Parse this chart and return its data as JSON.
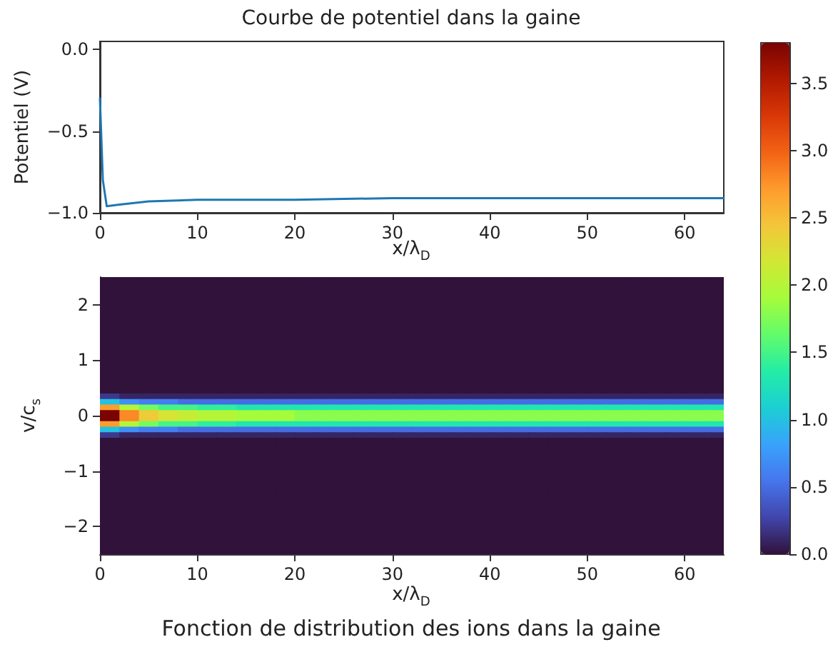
{
  "chart_data": [
    {
      "type": "line",
      "title": "Courbe de potentiel dans la gaine",
      "xlabel": "x/λ$_{D}$",
      "ylabel": "Potentiel (V)",
      "x": [
        0,
        0.3,
        0.7,
        2,
        5,
        10,
        20,
        30,
        64
      ],
      "series": [
        {
          "color": "#1f77b4",
          "values": [
            -0.3,
            -0.8,
            -0.96,
            -0.95,
            -0.93,
            -0.92,
            -0.92,
            -0.91,
            -0.91
          ]
        }
      ],
      "xlim": [
        0,
        64
      ],
      "xticks": [
        0,
        10,
        20,
        30,
        40,
        50,
        60
      ],
      "ylim": [
        -1.0,
        0.05
      ],
      "yticks": [
        {
          "value": 0,
          "label": "0.0"
        },
        {
          "value": -0.5,
          "label": "−0.5"
        },
        {
          "value": -1,
          "label": "−1.0"
        }
      ],
      "grid": false,
      "marker": "none"
    },
    {
      "type": "heatmap",
      "title": "Fonction de distribution des ions dans la gaine",
      "xlabel": "x/λ$_{D}$",
      "ylabel": "v/c$_{s}$",
      "x": [
        1,
        3,
        5,
        7,
        9,
        11,
        13,
        15,
        17,
        19,
        21,
        23,
        25,
        27,
        29,
        31,
        33,
        35,
        37,
        39,
        41,
        43,
        45,
        47,
        49,
        51,
        53,
        55,
        57,
        59,
        61,
        63
      ],
      "y": [
        2.45,
        2.35,
        2.25,
        2.15,
        2.05,
        1.95,
        1.85,
        1.75,
        1.65,
        1.55,
        1.45,
        1.35,
        1.25,
        1.15,
        1.05,
        0.95,
        0.85,
        0.75,
        0.65,
        0.55,
        0.45,
        0.35,
        0.25,
        0.15,
        0.05,
        -0.05,
        -0.15,
        -0.25,
        -0.35,
        -0.45,
        -0.55,
        -0.65,
        -0.75,
        -0.85,
        -0.95,
        -1.05,
        -1.15,
        -1.25,
        -1.35,
        -1.45,
        -1.55,
        -1.65,
        -1.75,
        -1.85,
        -1.95,
        -2.05,
        -2.15,
        -2.25,
        -2.35,
        -2.45
      ],
      "cells": [
        [
          0,
          0,
          0,
          0,
          0,
          0,
          0,
          0,
          0,
          0,
          0,
          0,
          0,
          0,
          0,
          0,
          0,
          0,
          0,
          0,
          0,
          0,
          0,
          0,
          0,
          0,
          0,
          0,
          0,
          0,
          0,
          0
        ],
        [
          0,
          0,
          0,
          0,
          0,
          0,
          0,
          0,
          0,
          0,
          0,
          0,
          0,
          0,
          0,
          0,
          0,
          0,
          0,
          0,
          0,
          0,
          0,
          0,
          0,
          0,
          0,
          0,
          0,
          0,
          0,
          0
        ],
        [
          0,
          0,
          0,
          0,
          0,
          0,
          0,
          0,
          0,
          0,
          0,
          0,
          0,
          0,
          0,
          0,
          0,
          0,
          0,
          0,
          0,
          0,
          0,
          0,
          0,
          0,
          0,
          0,
          0,
          0,
          0,
          0
        ],
        [
          0,
          0,
          0,
          0,
          0,
          0,
          0,
          0,
          0,
          0,
          0,
          0,
          0,
          0,
          0,
          0,
          0,
          0,
          0,
          0,
          0,
          0,
          0,
          0,
          0,
          0,
          0,
          0,
          0,
          0,
          0,
          0
        ],
        [
          0,
          0,
          0,
          0,
          0,
          0,
          0,
          0,
          0,
          0,
          0,
          0,
          0,
          0,
          0,
          0,
          0,
          0,
          0,
          0,
          0,
          0,
          0,
          0,
          0,
          0,
          0,
          0,
          0,
          0,
          0,
          0
        ],
        [
          0,
          0,
          0,
          0,
          0,
          0,
          0,
          0,
          0,
          0,
          0,
          0,
          0,
          0,
          0,
          0,
          0,
          0,
          0,
          0,
          0,
          0,
          0,
          0,
          0,
          0,
          0,
          0,
          0,
          0,
          0,
          0
        ],
        [
          0,
          0,
          0,
          0,
          0,
          0,
          0,
          0,
          0,
          0,
          0,
          0,
          0,
          0,
          0,
          0,
          0,
          0,
          0,
          0,
          0,
          0,
          0,
          0,
          0,
          0,
          0,
          0,
          0,
          0,
          0,
          0
        ],
        [
          0,
          0,
          0,
          0,
          0,
          0,
          0,
          0,
          0,
          0,
          0,
          0,
          0,
          0,
          0,
          0,
          0,
          0,
          0,
          0,
          0,
          0,
          0,
          0,
          0,
          0,
          0,
          0,
          0,
          0,
          0,
          0
        ],
        [
          0,
          0,
          0,
          0,
          0,
          0,
          0,
          0,
          0,
          0,
          0,
          0,
          0,
          0,
          0,
          0,
          0,
          0,
          0,
          0,
          0,
          0,
          0,
          0,
          0,
          0,
          0,
          0,
          0,
          0,
          0,
          0
        ],
        [
          0,
          0,
          0,
          0,
          0,
          0,
          0,
          0,
          0,
          0,
          0,
          0,
          0,
          0,
          0,
          0,
          0,
          0,
          0,
          0,
          0,
          0,
          0,
          0,
          0,
          0,
          0,
          0,
          0,
          0,
          0,
          0
        ],
        [
          0,
          0,
          0,
          0,
          0,
          0,
          0,
          0,
          0,
          0,
          0,
          0,
          0,
          0,
          0,
          0,
          0,
          0,
          0,
          0,
          0,
          0,
          0,
          0,
          0,
          0,
          0,
          0,
          0,
          0,
          0,
          0
        ],
        [
          0,
          0,
          0,
          0,
          0,
          0,
          0,
          0,
          0,
          0,
          0,
          0,
          0,
          0,
          0,
          0,
          0,
          0,
          0,
          0,
          0,
          0,
          0,
          0,
          0,
          0,
          0,
          0,
          0,
          0,
          0,
          0
        ],
        [
          0,
          0,
          0,
          0,
          0,
          0,
          0,
          0,
          0,
          0,
          0,
          0,
          0,
          0,
          0,
          0,
          0,
          0,
          0,
          0,
          0,
          0,
          0,
          0,
          0,
          0,
          0,
          0,
          0,
          0,
          0,
          0
        ],
        [
          0,
          0,
          0,
          0,
          0,
          0,
          0,
          0,
          0,
          0,
          0,
          0,
          0,
          0,
          0,
          0,
          0,
          0,
          0,
          0,
          0,
          0,
          0,
          0,
          0,
          0,
          0,
          0,
          0,
          0,
          0,
          0
        ],
        [
          0,
          0,
          0,
          0,
          0,
          0,
          0,
          0,
          0,
          0,
          0,
          0,
          0,
          0,
          0,
          0,
          0,
          0,
          0,
          0,
          0,
          0,
          0,
          0,
          0,
          0,
          0,
          0,
          0,
          0,
          0,
          0
        ],
        [
          0,
          0,
          0,
          0,
          0,
          0,
          0,
          0,
          0,
          0,
          0,
          0,
          0,
          0,
          0,
          0,
          0,
          0,
          0,
          0,
          0,
          0,
          0,
          0,
          0,
          0,
          0,
          0,
          0,
          0,
          0,
          0
        ],
        [
          0,
          0,
          0,
          0,
          0,
          0,
          0,
          0,
          0,
          0,
          0,
          0,
          0,
          0,
          0,
          0,
          0,
          0,
          0,
          0,
          0,
          0,
          0,
          0,
          0,
          0,
          0,
          0,
          0,
          0,
          0,
          0
        ],
        [
          0,
          0,
          0,
          0,
          0,
          0,
          0,
          0,
          0,
          0,
          0,
          0,
          0,
          0,
          0,
          0,
          0,
          0,
          0,
          0,
          0,
          0,
          0,
          0,
          0,
          0,
          0,
          0,
          0,
          0,
          0,
          0
        ],
        [
          0,
          0,
          0,
          0,
          0,
          0,
          0,
          0,
          0,
          0,
          0,
          0,
          0,
          0,
          0,
          0,
          0,
          0,
          0,
          0,
          0,
          0,
          0,
          0,
          0,
          0,
          0,
          0,
          0,
          0,
          0,
          0
        ],
        [
          0,
          0,
          0,
          0,
          0,
          0,
          0,
          0,
          0,
          0,
          0,
          0,
          0,
          0,
          0,
          0,
          0,
          0,
          0,
          0,
          0,
          0,
          0,
          0,
          0,
          0,
          0,
          0,
          0,
          0,
          0,
          0
        ],
        [
          0,
          0,
          0,
          0,
          0,
          0,
          0,
          0,
          0,
          0,
          0,
          0,
          0,
          0,
          0,
          0,
          0,
          0,
          0,
          0,
          0,
          0,
          0,
          0,
          0,
          0,
          0,
          0,
          0,
          0,
          0,
          0
        ],
        [
          0.2,
          0.1,
          0.1,
          0.1,
          0.1,
          0.1,
          0.1,
          0.1,
          0.1,
          0.1,
          0.1,
          0.1,
          0.1,
          0.1,
          0.1,
          0.1,
          0.1,
          0.1,
          0.1,
          0.1,
          0.1,
          0.1,
          0.1,
          0.1,
          0.1,
          0.1,
          0.1,
          0.1,
          0.1,
          0.1,
          0.1,
          0.1
        ],
        [
          1.0,
          0.7,
          0.6,
          0.6,
          0.5,
          0.5,
          0.5,
          0.5,
          0.5,
          0.5,
          0.5,
          0.5,
          0.5,
          0.5,
          0.5,
          0.5,
          0.5,
          0.5,
          0.5,
          0.5,
          0.5,
          0.5,
          0.5,
          0.5,
          0.5,
          0.5,
          0.5,
          0.5,
          0.5,
          0.5,
          0.5,
          0.5
        ],
        [
          2.7,
          2.0,
          1.7,
          1.5,
          1.5,
          1.4,
          1.4,
          1.3,
          1.3,
          1.3,
          1.3,
          1.3,
          1.3,
          1.3,
          1.3,
          1.3,
          1.3,
          1.3,
          1.3,
          1.3,
          1.3,
          1.3,
          1.3,
          1.3,
          1.3,
          1.3,
          1.3,
          1.3,
          1.3,
          1.3,
          1.3,
          1.3
        ],
        [
          3.8,
          2.8,
          2.4,
          2.2,
          2.1,
          2.0,
          2.0,
          1.9,
          1.9,
          1.9,
          1.8,
          1.8,
          1.8,
          1.8,
          1.8,
          1.8,
          1.8,
          1.8,
          1.8,
          1.8,
          1.8,
          1.8,
          1.8,
          1.8,
          1.8,
          1.8,
          1.8,
          1.8,
          1.8,
          1.8,
          1.8,
          1.8
        ],
        [
          3.8,
          2.8,
          2.4,
          2.2,
          2.1,
          2.0,
          2.0,
          1.9,
          1.9,
          1.9,
          1.8,
          1.8,
          1.8,
          1.8,
          1.8,
          1.8,
          1.8,
          1.8,
          1.8,
          1.8,
          1.8,
          1.8,
          1.8,
          1.8,
          1.8,
          1.8,
          1.8,
          1.8,
          1.8,
          1.8,
          1.8,
          1.8
        ],
        [
          2.7,
          2.0,
          1.7,
          1.5,
          1.5,
          1.4,
          1.4,
          1.3,
          1.3,
          1.3,
          1.3,
          1.3,
          1.3,
          1.3,
          1.3,
          1.3,
          1.3,
          1.3,
          1.3,
          1.3,
          1.3,
          1.3,
          1.3,
          1.3,
          1.3,
          1.3,
          1.3,
          1.3,
          1.3,
          1.3,
          1.3,
          1.3
        ],
        [
          1.0,
          0.7,
          0.6,
          0.6,
          0.5,
          0.5,
          0.5,
          0.5,
          0.5,
          0.5,
          0.5,
          0.5,
          0.5,
          0.5,
          0.5,
          0.5,
          0.5,
          0.5,
          0.5,
          0.5,
          0.5,
          0.5,
          0.5,
          0.5,
          0.5,
          0.5,
          0.5,
          0.5,
          0.5,
          0.5,
          0.5,
          0.5
        ],
        [
          0.2,
          0.1,
          0.1,
          0.1,
          0.1,
          0.1,
          0.1,
          0.1,
          0.1,
          0.1,
          0.1,
          0.1,
          0.1,
          0.1,
          0.1,
          0.1,
          0.1,
          0.1,
          0.1,
          0.1,
          0.1,
          0.1,
          0.1,
          0.1,
          0.1,
          0.1,
          0.1,
          0.1,
          0.1,
          0.1,
          0.1,
          0.1
        ],
        [
          0,
          0,
          0,
          0,
          0,
          0,
          0,
          0,
          0,
          0,
          0,
          0,
          0,
          0,
          0,
          0,
          0,
          0,
          0,
          0,
          0,
          0,
          0,
          0,
          0,
          0,
          0,
          0,
          0,
          0,
          0,
          0
        ],
        [
          0,
          0,
          0,
          0,
          0,
          0,
          0,
          0,
          0,
          0,
          0,
          0,
          0,
          0,
          0,
          0,
          0,
          0,
          0,
          0,
          0,
          0,
          0,
          0,
          0,
          0,
          0,
          0,
          0,
          0,
          0,
          0
        ],
        [
          0,
          0,
          0,
          0,
          0,
          0,
          0,
          0,
          0,
          0,
          0,
          0,
          0,
          0,
          0,
          0,
          0,
          0,
          0,
          0,
          0,
          0,
          0,
          0,
          0,
          0,
          0,
          0,
          0,
          0,
          0,
          0
        ],
        [
          0,
          0,
          0,
          0,
          0,
          0,
          0,
          0,
          0,
          0,
          0,
          0,
          0,
          0,
          0,
          0,
          0,
          0,
          0,
          0,
          0,
          0,
          0,
          0,
          0,
          0,
          0,
          0,
          0,
          0,
          0,
          0
        ],
        [
          0,
          0,
          0,
          0,
          0,
          0,
          0,
          0,
          0,
          0,
          0,
          0,
          0,
          0,
          0,
          0,
          0,
          0,
          0,
          0,
          0,
          0,
          0,
          0,
          0,
          0,
          0,
          0,
          0,
          0,
          0,
          0
        ],
        [
          0,
          0,
          0,
          0,
          0,
          0,
          0,
          0,
          0,
          0,
          0,
          0,
          0,
          0,
          0,
          0,
          0,
          0,
          0,
          0,
          0,
          0,
          0,
          0,
          0,
          0,
          0,
          0,
          0,
          0,
          0,
          0
        ],
        [
          0,
          0,
          0,
          0,
          0,
          0,
          0,
          0,
          0,
          0,
          0,
          0,
          0,
          0,
          0,
          0,
          0,
          0,
          0,
          0,
          0,
          0,
          0,
          0,
          0,
          0,
          0,
          0,
          0,
          0,
          0,
          0
        ],
        [
          0,
          0,
          0,
          0,
          0,
          0,
          0,
          0,
          0,
          0,
          0,
          0,
          0,
          0,
          0,
          0,
          0,
          0,
          0,
          0,
          0,
          0,
          0,
          0,
          0,
          0,
          0,
          0,
          0,
          0,
          0,
          0
        ],
        [
          0,
          0,
          0,
          0,
          0,
          0,
          0,
          0,
          0,
          0,
          0,
          0,
          0,
          0,
          0,
          0,
          0,
          0,
          0,
          0,
          0,
          0,
          0,
          0,
          0,
          0,
          0,
          0,
          0,
          0,
          0,
          0
        ],
        [
          0,
          0,
          0,
          0,
          0,
          0,
          0,
          0,
          0,
          0,
          0,
          0,
          0,
          0,
          0,
          0,
          0,
          0,
          0,
          0,
          0,
          0,
          0,
          0,
          0,
          0,
          0,
          0,
          0,
          0,
          0,
          0
        ],
        [
          0,
          0,
          0,
          0,
          0,
          0,
          0,
          0,
          0,
          0,
          0,
          0,
          0,
          0,
          0,
          0,
          0,
          0,
          0,
          0,
          0,
          0,
          0,
          0,
          0,
          0,
          0,
          0,
          0,
          0,
          0,
          0
        ],
        [
          0,
          0,
          0,
          0,
          0,
          0,
          0,
          0,
          0,
          0,
          0,
          0,
          0,
          0,
          0,
          0,
          0,
          0,
          0,
          0,
          0,
          0,
          0,
          0,
          0,
          0,
          0,
          0,
          0,
          0,
          0,
          0
        ],
        [
          0,
          0,
          0,
          0,
          0,
          0,
          0,
          0,
          0,
          0,
          0,
          0,
          0,
          0,
          0,
          0,
          0,
          0,
          0,
          0,
          0,
          0,
          0,
          0,
          0,
          0,
          0,
          0,
          0,
          0,
          0,
          0
        ],
        [
          0,
          0,
          0,
          0,
          0,
          0,
          0,
          0,
          0,
          0,
          0,
          0,
          0,
          0,
          0,
          0,
          0,
          0,
          0,
          0,
          0,
          0,
          0,
          0,
          0,
          0,
          0,
          0,
          0,
          0,
          0,
          0
        ],
        [
          0,
          0,
          0,
          0,
          0,
          0,
          0,
          0,
          0,
          0,
          0,
          0,
          0,
          0,
          0,
          0,
          0,
          0,
          0,
          0,
          0,
          0,
          0,
          0,
          0,
          0,
          0,
          0,
          0,
          0,
          0,
          0
        ],
        [
          0,
          0,
          0,
          0,
          0,
          0,
          0,
          0,
          0,
          0,
          0,
          0,
          0,
          0,
          0,
          0,
          0,
          0,
          0,
          0,
          0,
          0,
          0,
          0,
          0,
          0,
          0,
          0,
          0,
          0,
          0,
          0
        ],
        [
          0,
          0,
          0,
          0,
          0,
          0,
          0,
          0,
          0,
          0,
          0,
          0,
          0,
          0,
          0,
          0,
          0,
          0,
          0,
          0,
          0,
          0,
          0,
          0,
          0,
          0,
          0,
          0,
          0,
          0,
          0,
          0
        ],
        [
          0,
          0,
          0,
          0,
          0,
          0,
          0,
          0,
          0,
          0,
          0,
          0,
          0,
          0,
          0,
          0,
          0,
          0,
          0,
          0,
          0,
          0,
          0,
          0,
          0,
          0,
          0,
          0,
          0,
          0,
          0,
          0
        ],
        [
          0,
          0,
          0,
          0,
          0,
          0,
          0,
          0,
          0,
          0,
          0,
          0,
          0,
          0,
          0,
          0,
          0,
          0,
          0,
          0,
          0,
          0,
          0,
          0,
          0,
          0,
          0,
          0,
          0,
          0,
          0,
          0
        ],
        [
          0,
          0,
          0,
          0,
          0,
          0,
          0,
          0,
          0,
          0,
          0,
          0,
          0,
          0,
          0,
          0,
          0,
          0,
          0,
          0,
          0,
          0,
          0,
          0,
          0,
          0,
          0,
          0,
          0,
          0,
          0,
          0
        ],
        [
          0,
          0,
          0,
          0,
          0,
          0,
          0,
          0,
          0,
          0,
          0,
          0,
          0,
          0,
          0,
          0,
          0,
          0,
          0,
          0,
          0,
          0,
          0,
          0,
          0,
          0,
          0,
          0,
          0,
          0,
          0,
          0
        ]
      ],
      "xlim": [
        0,
        64
      ],
      "xticks": [
        0,
        10,
        20,
        30,
        40,
        50,
        60
      ],
      "ylim": [
        -2.5,
        2.5
      ],
      "yticks": [
        {
          "value": -2,
          "label": "−2"
        },
        {
          "value": -1,
          "label": "−1"
        },
        0,
        1,
        2
      ],
      "clim": [
        0,
        3.8
      ],
      "cticks": [
        {
          "value": 0,
          "label": "0.0"
        },
        {
          "value": 0.5,
          "label": "0.5"
        },
        {
          "value": 1,
          "label": "1.0"
        },
        {
          "value": 1.5,
          "label": "1.5"
        },
        {
          "value": 2,
          "label": "2.0"
        },
        {
          "value": 2.5,
          "label": "2.5"
        },
        {
          "value": 3,
          "label": "3.0"
        },
        {
          "value": 3.5,
          "label": "3.5"
        }
      ]
    }
  ]
}
